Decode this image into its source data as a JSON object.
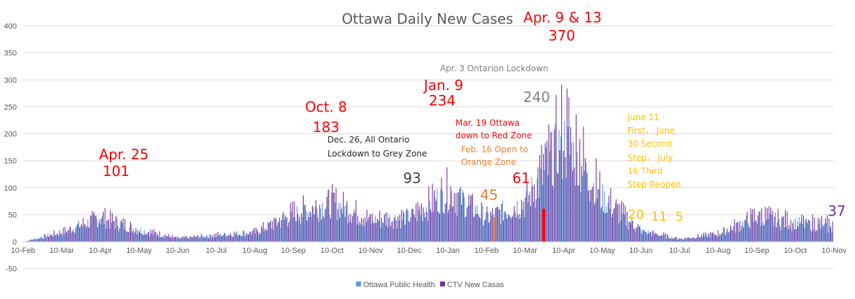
{
  "colors": {
    "ottawa_public_health": "#5b9bd5",
    "ctv_new_cases": "#7030a0",
    "highlight_orange": "#ed7d31",
    "highlight_red": "#ff0000",
    "gridline": "#d9d9d9",
    "axis_text": "#595959"
  },
  "chart_data": {
    "type": "bar",
    "title": "Ottawa Daily New Cases",
    "xlabel": "",
    "ylabel": "",
    "ylim": [
      -50,
      400
    ],
    "yticks": [
      400,
      350,
      300,
      250,
      200,
      150,
      100,
      50,
      0,
      -50
    ],
    "grid": true,
    "legend_position": "bottom",
    "x_tick_labels": [
      "10-Feb",
      "10-Mar",
      "10-Apr",
      "10-May",
      "10-Jun",
      "10-Jul",
      "10-Aug",
      "10-Sep",
      "10-Oct",
      "10-Nov",
      "10-Dec",
      "10-Jan",
      "10-Feb",
      "10-Mar",
      "10-Apr",
      "10-May",
      "10-Jun",
      "10-Jul",
      "10-Aug",
      "10-Sep",
      "10-Oct",
      "10-Nov"
    ],
    "x": [
      "10-Feb",
      "10-Mar",
      "10-Apr",
      "10-May",
      "10-Jun",
      "10-Jul",
      "10-Aug",
      "10-Sep",
      "10-Oct",
      "10-Nov",
      "10-Dec",
      "10-Jan",
      "10-Feb",
      "10-Mar",
      "10-Apr",
      "10-May",
      "10-Jun",
      "10-Jul",
      "10-Aug",
      "10-Sep",
      "10-Oct",
      "10-Nov"
    ],
    "series": [
      {
        "name": "Ottawa Public Health",
        "color": "#5b9bd5",
        "values": [
          0,
          18,
          45,
          22,
          6,
          12,
          18,
          50,
          75,
          40,
          45,
          95,
          45,
          75,
          190,
          80,
          20,
          5,
          15,
          45,
          35,
          25
        ]
      },
      {
        "name": "CTV New Casas",
        "color": "#7030a0",
        "values": [
          0,
          20,
          50,
          24,
          7,
          14,
          20,
          60,
          80,
          45,
          52,
          105,
          48,
          80,
          240,
          90,
          22,
          6,
          17,
          55,
          40,
          37
        ]
      }
    ],
    "highlighted_bars": [
      {
        "x": "16-Feb",
        "value": 45,
        "color": "#ed7d31"
      },
      {
        "x": "19-Mar",
        "value": 61,
        "color": "#ff0000"
      }
    ],
    "annotations": [
      {
        "text": "Apr. 25",
        "color": "#ff0000"
      },
      {
        "text": "101",
        "color": "#ff0000"
      },
      {
        "text": "Oct. 8",
        "color": "#ff0000"
      },
      {
        "text": "183",
        "color": "#ff0000"
      },
      {
        "text": "Dec. 26, All Ontario",
        "color": "#262626"
      },
      {
        "text": "Lockdown to Grey Zone",
        "color": "#262626"
      },
      {
        "text": "93",
        "color": "#404040"
      },
      {
        "text": "Jan. 9",
        "color": "#ff0000"
      },
      {
        "text": "234",
        "color": "#ff0000"
      },
      {
        "text": "Mar. 19 Ottawa",
        "color": "#ff0000"
      },
      {
        "text": "down to Red Zone",
        "color": "#ff0000"
      },
      {
        "text": "Feb. 16 Open to",
        "color": "#ed7d31"
      },
      {
        "text": "Orange Zone",
        "color": "#ed7d31"
      },
      {
        "text": "45",
        "color": "#ed7d31"
      },
      {
        "text": "61",
        "color": "#ff0000"
      },
      {
        "text": "Apr. 3 Ontarion Lockdown",
        "color": "#7f7f7f"
      },
      {
        "text": "240",
        "color": "#7f7f7f"
      },
      {
        "text": "Apr. 9 & 13",
        "color": "#ff0000"
      },
      {
        "text": "370",
        "color": "#ff0000"
      },
      {
        "text": "June 11",
        "color": "#ffc000"
      },
      {
        "text": "First， June",
        "color": "#ffc000"
      },
      {
        "text": "30 Second",
        "color": "#ffc000"
      },
      {
        "text": "Step， July",
        "color": "#ffc000"
      },
      {
        "text": "16 Third",
        "color": "#ffc000"
      },
      {
        "text": "Step Reopen",
        "color": "#ffc000"
      },
      {
        "text": "20",
        "color": "#ffc000"
      },
      {
        "text": "11",
        "color": "#ffc000"
      },
      {
        "text": "5",
        "color": "#ffc000"
      },
      {
        "text": "37",
        "color": "#7030a0"
      }
    ]
  }
}
